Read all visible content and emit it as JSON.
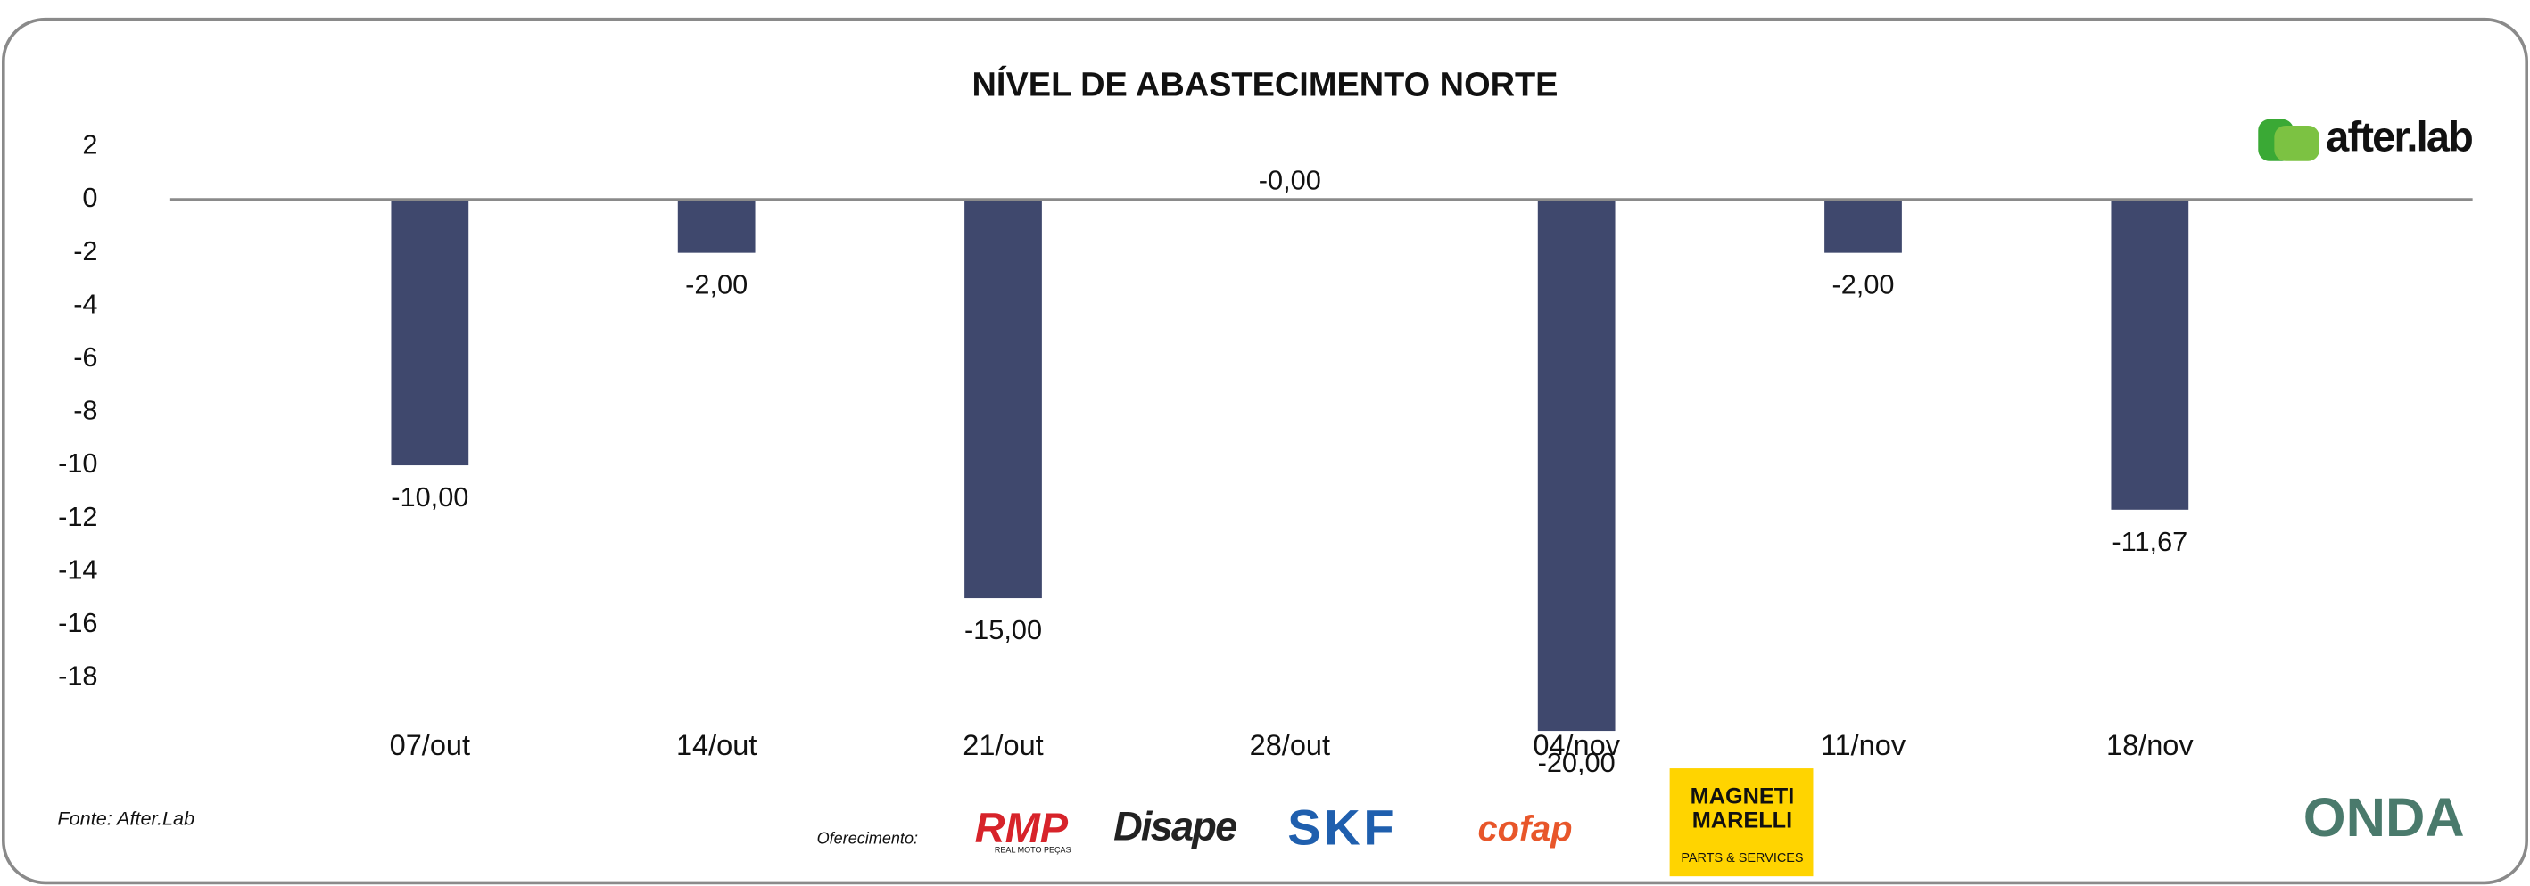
{
  "chart_data": {
    "type": "bar",
    "title": "NÍVEL DE ABASTECIMENTO NORTE",
    "categories": [
      "07/out",
      "14/out",
      "21/out",
      "28/out",
      "04/nov",
      "11/nov",
      "18/nov"
    ],
    "values": [
      -10,
      -2,
      -15,
      0,
      -20,
      -2,
      -11.67
    ],
    "value_labels": [
      "-10,00",
      "-2,00",
      "-15,00",
      "-0,00",
      "-20,00",
      "-2,00",
      "-11,67"
    ],
    "color": "#3f486d",
    "ylim": [
      -20.5,
      3
    ],
    "yticks": [
      2,
      0,
      -2,
      -4,
      -6,
      -8,
      -10,
      -12,
      -14,
      -16,
      -18
    ],
    "grid": false
  },
  "logo": "after.lab",
  "footer": {
    "source": "Fonte: After.Lab",
    "sponsor_label": "Oferecimento:",
    "sponsors": [
      "RMP",
      "REAL MOTO PEÇAS",
      "Disape",
      "SKF",
      "cofap",
      "MAGNETI",
      "MARELLI",
      "PARTS & SERVICES",
      "ONDA"
    ]
  }
}
